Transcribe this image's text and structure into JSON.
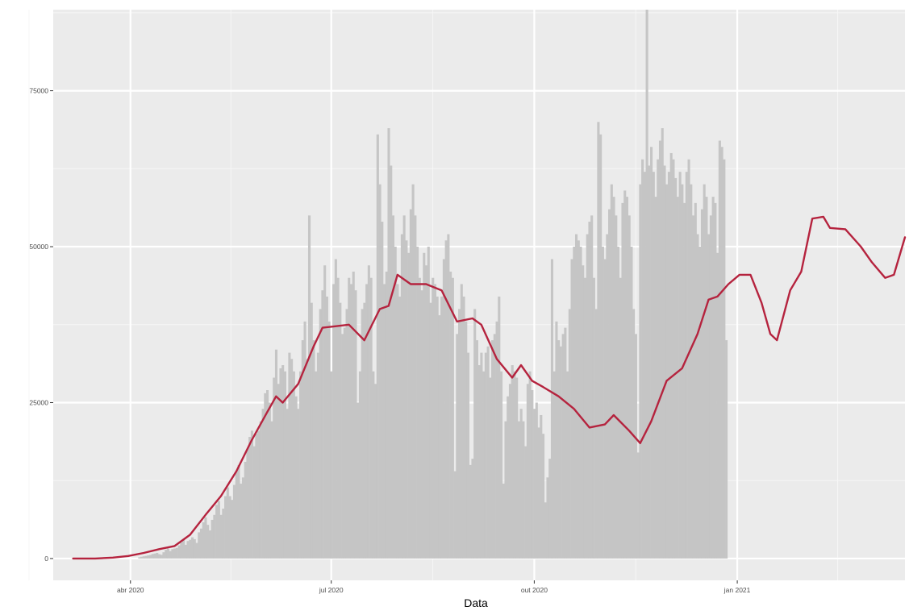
{
  "chart_data": {
    "type": "bar",
    "title": "",
    "xlabel": "Data",
    "ylabel": "",
    "xlim": [
      "2020-02-26",
      "2021-03-18"
    ],
    "ylim": [
      -3500,
      88000
    ],
    "grid": true,
    "x_ticks": [
      {
        "label": "abr 2020",
        "date": "2020-04-01"
      },
      {
        "label": "jul 2020",
        "date": "2020-07-01"
      },
      {
        "label": "out 2020",
        "date": "2020-10-01"
      },
      {
        "label": "jan 2021",
        "date": "2021-01-01"
      }
    ],
    "y_ticks": [
      {
        "label": "0",
        "value": 0
      },
      {
        "label": "25000",
        "value": 25000
      },
      {
        "label": "50000",
        "value": 50000
      },
      {
        "label": "75000",
        "value": 75000
      }
    ],
    "series": [
      {
        "kind": "bar",
        "color": "#c5c5c5",
        "start_date": "2020-03-06",
        "values": [
          0,
          0,
          0,
          0,
          0,
          0,
          0,
          0,
          0,
          0,
          0,
          0,
          0,
          0,
          0,
          0,
          0,
          0,
          0,
          0,
          0,
          0,
          0,
          0,
          0,
          0,
          0,
          0,
          0,
          0,
          200,
          280,
          350,
          420,
          500,
          560,
          720,
          800,
          900,
          700,
          600,
          1000,
          1400,
          1600,
          1200,
          1500,
          1600,
          1700,
          2100,
          2600,
          3000,
          2200,
          2800,
          3000,
          3400,
          3100,
          2500,
          4200,
          4800,
          5800,
          6600,
          5400,
          4500,
          6200,
          7000,
          8600,
          9200,
          7000,
          8000,
          10000,
          11400,
          10000,
          9400,
          11800,
          14000,
          15000,
          12000,
          13000,
          15500,
          17500,
          19500,
          20500,
          18000,
          20000,
          20500,
          22000,
          24000,
          26500,
          27000,
          25000,
          22000,
          29000,
          33500,
          28000,
          30500,
          31000,
          30000,
          24000,
          33000,
          32000,
          30000,
          26000,
          24000,
          30000,
          35000,
          38000,
          32000,
          55000,
          41000,
          35000,
          30000,
          33000,
          40000,
          43000,
          47000,
          42000,
          38000,
          30000,
          44000,
          48000,
          45000,
          41000,
          36000,
          37000,
          40000,
          45000,
          44000,
          46000,
          43000,
          25000,
          30000,
          40000,
          41000,
          44000,
          47000,
          45000,
          30000,
          28000,
          68000,
          60000,
          54000,
          44000,
          46000,
          69000,
          63000,
          55000,
          50000,
          44000,
          42000,
          52000,
          55000,
          51000,
          49000,
          56000,
          60000,
          55000,
          50000,
          45000,
          43000,
          49000,
          47000,
          50000,
          41000,
          45000,
          44000,
          42000,
          39000,
          42000,
          48000,
          51000,
          52000,
          46000,
          45000,
          14000,
          36000,
          40000,
          44000,
          42000,
          38000,
          33000,
          15000,
          16000,
          40000,
          35000,
          31000,
          33000,
          30000,
          33000,
          34000,
          29000,
          35000,
          36000,
          38000,
          42000,
          30000,
          12000,
          22000,
          26000,
          28000,
          31000,
          30000,
          29000,
          22000,
          24000,
          22000,
          18000,
          28000,
          30000,
          27000,
          24000,
          25000,
          21000,
          23000,
          20000,
          9000,
          13000,
          16000,
          48000,
          30000,
          38000,
          35000,
          34000,
          36000,
          37000,
          30000,
          40000,
          48000,
          50000,
          52000,
          51000,
          50000,
          47000,
          45000,
          52000,
          54000,
          55000,
          45000,
          40000,
          70000,
          68000,
          50000,
          48000,
          52000,
          56000,
          60000,
          58000,
          55000,
          50000,
          45000,
          57000,
          59000,
          58000,
          55000,
          50000,
          40000,
          36000,
          17000,
          60000,
          64000,
          62000,
          88000,
          63000,
          66000,
          62000,
          58000,
          64000,
          67000,
          69000,
          63000,
          60000,
          62000,
          65000,
          64000,
          61000,
          58000,
          62000,
          60000,
          57000,
          62000,
          64000,
          60000,
          55000,
          57000,
          52000,
          50000,
          56000,
          60000,
          58000,
          52000,
          55000,
          58000,
          57000,
          49000,
          67000,
          66000,
          64000,
          35000
        ]
      },
      {
        "kind": "line",
        "color": "#b5233e",
        "points": [
          [
            "2020-03-06",
            0
          ],
          [
            "2020-03-16",
            0
          ],
          [
            "2020-03-24",
            150
          ],
          [
            "2020-03-31",
            400
          ],
          [
            "2020-04-07",
            900
          ],
          [
            "2020-04-14",
            1500
          ],
          [
            "2020-04-21",
            2000
          ],
          [
            "2020-04-28",
            3800
          ],
          [
            "2020-05-05",
            7000
          ],
          [
            "2020-05-12",
            10000
          ],
          [
            "2020-05-19",
            14000
          ],
          [
            "2020-05-26",
            19000
          ],
          [
            "2020-06-02",
            23500
          ],
          [
            "2020-06-06",
            26000
          ],
          [
            "2020-06-09",
            25000
          ],
          [
            "2020-06-16",
            28000
          ],
          [
            "2020-06-23",
            34000
          ],
          [
            "2020-06-27",
            37000
          ],
          [
            "2020-07-02",
            37200
          ],
          [
            "2020-07-09",
            37500
          ],
          [
            "2020-07-16",
            35000
          ],
          [
            "2020-07-23",
            40000
          ],
          [
            "2020-07-27",
            40500
          ],
          [
            "2020-07-31",
            45500
          ],
          [
            "2020-08-06",
            44000
          ],
          [
            "2020-08-13",
            44000
          ],
          [
            "2020-08-20",
            43000
          ],
          [
            "2020-08-27",
            38000
          ],
          [
            "2020-09-03",
            38500
          ],
          [
            "2020-09-07",
            37500
          ],
          [
            "2020-09-14",
            32000
          ],
          [
            "2020-09-21",
            29000
          ],
          [
            "2020-09-25",
            31000
          ],
          [
            "2020-09-30",
            28500
          ],
          [
            "2020-10-05",
            27500
          ],
          [
            "2020-10-12",
            26000
          ],
          [
            "2020-10-19",
            24000
          ],
          [
            "2020-10-26",
            21000
          ],
          [
            "2020-11-02",
            21500
          ],
          [
            "2020-11-06",
            23000
          ],
          [
            "2020-11-13",
            20500
          ],
          [
            "2020-11-18",
            18500
          ],
          [
            "2020-11-23",
            22000
          ],
          [
            "2020-11-30",
            28500
          ],
          [
            "2020-12-07",
            30500
          ],
          [
            "2020-12-14",
            36000
          ],
          [
            "2020-12-19",
            41500
          ],
          [
            "2020-12-23",
            42000
          ],
          [
            "2020-12-28",
            44000
          ],
          [
            "2021-01-02",
            45500
          ],
          [
            "2021-01-07",
            45500
          ],
          [
            "2021-01-12",
            41000
          ],
          [
            "2021-01-16",
            36000
          ],
          [
            "2021-01-19",
            35000
          ],
          [
            "2021-01-25",
            43000
          ],
          [
            "2021-01-30",
            46000
          ],
          [
            "2021-02-04",
            54500
          ],
          [
            "2021-02-09",
            54800
          ],
          [
            "2021-02-12",
            53000
          ],
          [
            "2021-02-19",
            52800
          ],
          [
            "2021-02-26",
            50000
          ],
          [
            "2021-03-03",
            47500
          ],
          [
            "2021-03-09",
            45000
          ],
          [
            "2021-03-13",
            45500
          ],
          [
            "2021-03-18",
            51500
          ]
        ]
      }
    ]
  }
}
